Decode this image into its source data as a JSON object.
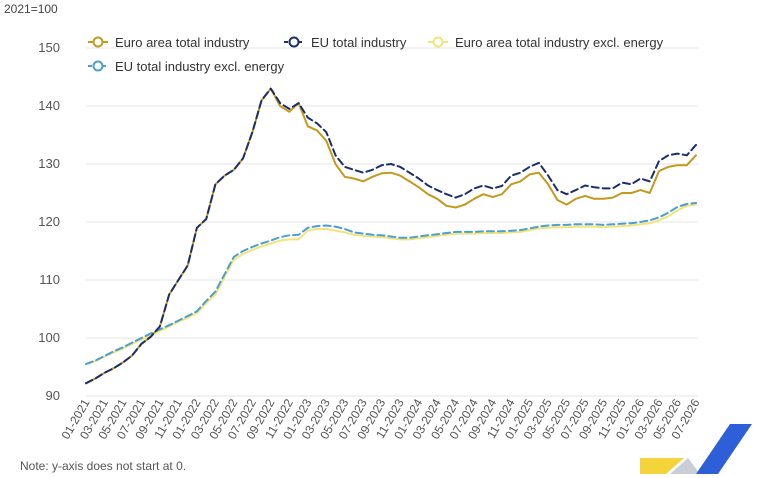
{
  "unit_label": "2021=100",
  "note": "Note: y-axis does not start at 0.",
  "colors": {
    "euro_area_total": "#C49A1C",
    "eu_total": "#1C2E6E",
    "euro_area_excl_energy": "#F3E47A",
    "eu_excl_energy": "#4A9FD5",
    "grid": "#E6E6E6",
    "logo_blue": "#2E5FD8",
    "logo_yellow": "#F5D33A",
    "logo_grey": "#C9CDD6"
  },
  "chart_data": {
    "type": "line",
    "ylim": [
      90,
      150
    ],
    "yticks": [
      90,
      100,
      110,
      120,
      130,
      140,
      150
    ],
    "grid": true,
    "legend_position": "top",
    "x_tick_labels": [
      "01-2021",
      "03-2021",
      "05-2021",
      "07-2021",
      "09-2021",
      "11-2021",
      "01-2022",
      "03-2022",
      "05-2022",
      "07-2022",
      "09-2022",
      "11-2022",
      "01-2023",
      "03-2023",
      "05-2023",
      "07-2023",
      "09-2023",
      "11-2023",
      "01-2024",
      "03-2024",
      "05-2024",
      "07-2024",
      "09-2024",
      "11-2024",
      "01-2025",
      "03-2025",
      "05-2025",
      "07-2025",
      "09-2025",
      "11-2025",
      "01-2026",
      "03-2026",
      "05-2026",
      "07-2026"
    ],
    "series": [
      {
        "name": "Euro area total industry",
        "color_key": "euro_area_total",
        "dashed": false,
        "values": [
          92.2,
          93.0,
          94.0,
          94.8,
          95.8,
          97.0,
          99.0,
          100.2,
          102.0,
          107.5,
          110.0,
          112.5,
          119.0,
          120.5,
          126.5,
          128.0,
          129.0,
          131.0,
          135.5,
          141.0,
          143.0,
          140.0,
          139.0,
          140.5,
          136.5,
          135.8,
          134.0,
          130.0,
          127.8,
          127.5,
          127.0,
          127.8,
          128.4,
          128.5,
          128.0,
          127.0,
          126.0,
          124.8,
          124.0,
          122.8,
          122.5,
          123.0,
          124.0,
          124.8,
          124.3,
          124.8,
          126.5,
          127.0,
          128.2,
          128.5,
          126.5,
          123.8,
          123.0,
          124.0,
          124.5,
          124.0,
          124.0,
          124.2,
          125.0,
          125.0,
          125.5,
          125.0,
          128.8,
          129.5,
          129.8,
          129.8,
          131.5
        ]
      },
      {
        "name": "EU total industry",
        "color_key": "eu_total",
        "dashed": true,
        "values": [
          92.2,
          93.0,
          94.0,
          94.8,
          95.8,
          97.0,
          99.0,
          100.2,
          102.0,
          107.5,
          110.0,
          112.5,
          119.0,
          120.5,
          126.5,
          128.0,
          129.0,
          131.0,
          135.5,
          141.0,
          143.0,
          140.5,
          139.5,
          140.5,
          138.0,
          137.0,
          135.5,
          131.5,
          129.5,
          129.0,
          128.5,
          129.0,
          129.8,
          130.0,
          129.5,
          128.5,
          127.5,
          126.3,
          125.5,
          124.8,
          124.2,
          124.8,
          125.8,
          126.3,
          125.8,
          126.2,
          128.0,
          128.5,
          129.5,
          130.2,
          128.0,
          125.5,
          124.8,
          125.5,
          126.3,
          126.0,
          125.8,
          125.8,
          126.8,
          126.5,
          127.5,
          127.0,
          130.5,
          131.5,
          131.8,
          131.5,
          133.3
        ]
      },
      {
        "name": "Euro area total industry excl. energy",
        "color_key": "euro_area_excl_energy",
        "dashed": false,
        "values": [
          95.5,
          96.0,
          96.8,
          97.5,
          98.2,
          99.0,
          99.8,
          100.5,
          101.2,
          102.0,
          102.8,
          103.5,
          104.3,
          106.0,
          107.5,
          110.5,
          113.5,
          114.5,
          115.2,
          115.8,
          116.3,
          116.8,
          117.0,
          117.0,
          118.5,
          118.8,
          118.8,
          118.5,
          118.2,
          117.8,
          117.6,
          117.5,
          117.4,
          117.2,
          117.0,
          117.0,
          117.2,
          117.4,
          117.6,
          117.8,
          118.0,
          118.0,
          118.0,
          118.1,
          118.1,
          118.1,
          118.2,
          118.3,
          118.6,
          118.9,
          119.0,
          119.1,
          119.1,
          119.2,
          119.2,
          119.2,
          119.1,
          119.2,
          119.3,
          119.4,
          119.6,
          119.8,
          120.3,
          121.0,
          122.0,
          122.8,
          123.0
        ]
      },
      {
        "name": "EU total industry excl. energy",
        "color_key": "eu_excl_energy",
        "dashed": true,
        "values": [
          95.5,
          96.1,
          96.9,
          97.7,
          98.4,
          99.2,
          100.0,
          100.8,
          101.5,
          102.2,
          103.0,
          103.8,
          104.6,
          106.4,
          108.0,
          111.0,
          114.0,
          115.0,
          115.7,
          116.3,
          116.8,
          117.4,
          117.7,
          117.8,
          119.0,
          119.3,
          119.4,
          119.2,
          118.8,
          118.2,
          118.0,
          117.8,
          117.7,
          117.5,
          117.3,
          117.3,
          117.5,
          117.7,
          117.9,
          118.1,
          118.3,
          118.3,
          118.3,
          118.4,
          118.4,
          118.4,
          118.5,
          118.6,
          118.9,
          119.2,
          119.4,
          119.5,
          119.5,
          119.6,
          119.6,
          119.6,
          119.5,
          119.6,
          119.7,
          119.8,
          120.0,
          120.3,
          120.8,
          121.6,
          122.6,
          123.1,
          123.3
        ]
      }
    ]
  }
}
